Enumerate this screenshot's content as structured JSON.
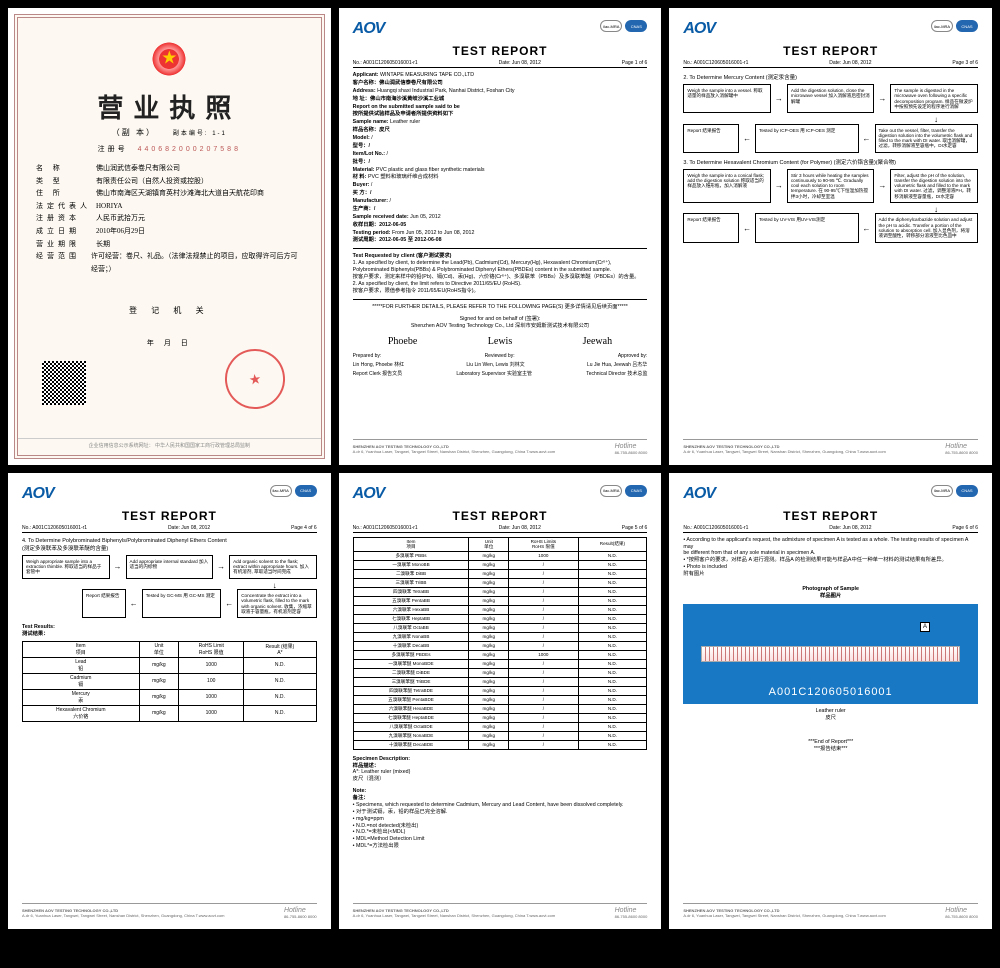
{
  "brand": "AOV",
  "cert_badges": [
    "ilac-MRA",
    "CNAS"
  ],
  "report_title": "TEST REPORT",
  "ref_no": "No.: A001C120605016001-r1",
  "date": "Date: Jun 08, 2012",
  "footer_company": "SHENZHEN AOV TESTING TECHNOLOGY CO.,LTD",
  "footer_addr": "A.dr 6, Yuanhua Laser, Tangwei, Tangwei Street, Nanshan District, Shenzhen, Guangdong, China    T.www.aovt.com",
  "hotline_label": "Hotline",
  "hotline_num": "86-755-8600 8000",
  "license": {
    "title": "营业执照",
    "sub": "（副 本）",
    "reg_label": "注册号",
    "reg_no": "440682000207588",
    "fields": [
      {
        "lbl": "名    称",
        "val": "佛山润武信泰卷尺有限公司"
      },
      {
        "lbl": "类    型",
        "val": "有限责任公司（自然人投资或控股）"
      },
      {
        "lbl": "住    所",
        "val": "佛山市南海区天湖镇育英村沙滩海北大道自天航花印商"
      },
      {
        "lbl": "法定代表人",
        "val": "HORIYA"
      },
      {
        "lbl": "注册资本",
        "val": "人民币武拾万元"
      },
      {
        "lbl": "成立日期",
        "val": "2010年06月29日"
      },
      {
        "lbl": "营业期限",
        "val": "长期"
      },
      {
        "lbl": "经营范围",
        "val": "许可经营：卷尺、礼品。（法律法规禁止的项目，应取得许可后方可经营；）"
      }
    ],
    "authority": "登 记 机 关",
    "date_line": "年    月    日",
    "foot": "企业信用信息公示系统网址：               中华人民共和国国家工商行政管理总局监制"
  },
  "p1": {
    "page": "Page 1 of 6",
    "lines": [
      "Applicant: WINTAPE MEASURING TAPE CO.,LTD",
      "客户名称：佛山润武信泰卷尺有限公司",
      "Address: Huangqi shaxi Industrial Park, Nanhai District, Foshan City",
      "地    址：佛山市南海沙溪黄岐沙溪工业城",
      "Report on the submitted sample said to be",
      "按所提供试验样品及申请者所提供资料如下",
      "Sample name: Leather ruler",
      "样品名称：皮尺",
      "Model: /",
      "型号：/",
      "Item/Lot No.: /",
      "批号：/",
      "Material: PVC plastic and glass fiber synthetic materials",
      "材  料: PVC 塑料和玻璃纤维合成材料",
      "Buyer: /",
      "买  方：/",
      "Manufacturer: /",
      "生产商：/",
      "Sample received date: Jun 05, 2012",
      "收样日期：2012-06-05",
      "Testing period: From Jun 05, 2012 to Jun 08, 2012",
      "测试周期：2012-06-05 至 2012-06-08"
    ],
    "req_title": "Test Requested by client (客户测试要求)",
    "req": [
      "1. As specified by client, to determine the Lead(Pb), Cadmium(Cd), Mercury(Hg), Hexavalent Chromium(Cr⁶⁺),",
      "   Polybrominated Biphenyls(PBBs) & Polybrominated Diphenyl Ethers(PBDEs) content in the submitted sample.",
      "   按客户要求，测定来样中的铅(Pb)、镉(Cd)、汞(Hg)、六价铬(Cr⁶⁺)、多溴联苯（PBBs）及多溴联苯醚（PBDEs）的含量。",
      "2. As specified by client, the limit refers to Directive 2011/65/EU (RoHS).",
      "   按客户要求，限值参考指令 2011/65/EU(RoHS指令)。"
    ],
    "further": "*****FOR FURTHER DETAILS, PLEASE REFER TO THE FOLLOWING PAGE(S) 更多详情请见后续页面*****",
    "signed": "Signed for and on behalf of (签署):",
    "company_cn": "Shenzhen AOV Testing Technology Co., Ltd 深圳市安姆斯测试技术有限公司",
    "sig1": "Phoebe",
    "sig2": "Lewis",
    "sig3": "Jeewah",
    "r1a": "Prepared by:",
    "r1b": "Reviewed by:",
    "r1c": "Approved by:",
    "r2a": "Lin Hong, Phoebe 林红",
    "r2b": "Liu Lin Wen, Lewis 刘林文",
    "r2c": "Lu Jie Hua, Jeewah 吕杰华",
    "r3a": "Report Clerk   报告文员",
    "r3b": "Laboratory Supervisor   实验室主管",
    "r3c": "Technical Director   技术总监"
  },
  "p3": {
    "page": "Page 3 of 6",
    "sec1": "2. To Determine Mercury Content (测定汞含量)",
    "b1": "Weigh the sample into a vessel.\n称取适量的样品放入消解罐中",
    "b2": "Add the digestion solution, close the microwave vessel\n加入消解液后密封消解罐",
    "b3": "The sample is digested in the microwave oven following a specific decomposition program.\n样品在微波炉中按照预先设定的程序进行消解",
    "b4": "Report\n结果报告",
    "b5": "Tested by ICP-OES\n用 ICP-OES 测定",
    "b6": "Take out the vessel, filter, transfer the digestion solution into the volumetric flask and filled to the mark with DI water.\n取出消解罐，过滤，转移消解液至容瓶中，DI水定容",
    "sec2": "3. To Determine Hexavalent Chromium Content (for Polymer) (测定六价铬含量)(聚合物)",
    "c1": "Weigh the sample into a conical flask; add the digestion solution\n称取适当的样品放入锥形瓶，加入消解液",
    "c2": "Stir 3 hours while heating the samples continuously to 90-95 ℃. Gradually cool each solution to room temperature.\n在 90-95℃下恒温加热搅拌3小时，冷却至室温",
    "c3": "Filter, adjust the pH of the solution, transfer the digestion solution into the volumetric flask and filled to the mark with DI water.\n过滤，调整溶液PH，转移消解液至容量瓶，DI水定容",
    "c4": "Report\n结果报告",
    "c5": "Tested by UV-VIS\n用UV-VIS测定",
    "c6": "Add the diphenylcarbazide solution and adjust the pH to acidic. Transfer a portion of the solution to absorption cell.\n加入显色剂，将溶液调至酸性，转移部分溶液至比色皿中"
  },
  "p4": {
    "page": "Page 4 of 6",
    "sec": "4. To Determine Polybrominated Biphenyls/Polybrominated Diphenyl Ethers Content\n(测定多溴联苯及多溴联苯醚的含量)",
    "d1": "Weigh appropriate sample into a extraction thimble.\n称取适当的样品于套管中",
    "d2": "Add appropriate internal standard\n加入适当的内标物",
    "d3": "Add organic solvent to the flask; extract within appropriate hours.\n加入有机溶剂, 萃取适当时间完成",
    "d4": "Report\n结果报告",
    "d5": "Tested by GC-MS\n用 GC-MS 测定",
    "d6": "Concentrate the extract into a volumetric flask, filled to the mark with organic solvent.\n收集，浓缩萃取液于容量瓶，有机溶剂定容",
    "res_title": "Test Results:\n测试结果：",
    "cols": [
      "Item\n项目",
      "Unit\n单位",
      "RoHS Limit\nRoHS 限值",
      "Result (结果)\nA*"
    ],
    "rows": [
      [
        "Lead\n铅",
        "mg/kg",
        "1000",
        "N.D."
      ],
      [
        "Cadmium\n镉",
        "mg/kg",
        "100",
        "N.D."
      ],
      [
        "Mercury\n汞",
        "mg/kg",
        "1000",
        "N.D."
      ],
      [
        "Hexavalent Chromium\n六价铬",
        "mg/kg",
        "1000",
        "N.D."
      ]
    ]
  },
  "p5": {
    "page": "Page 5 of 6",
    "cols": [
      "Item\n项目",
      "Unit\n单位",
      "RoHS Limits\nRoHS 限值",
      "Result(结果)"
    ],
    "rows": [
      [
        "多溴联苯  PBBs",
        "mg/kg",
        "1000",
        "N.D."
      ],
      [
        "一溴联苯  MonoBB",
        "mg/kg",
        "/",
        "N.D."
      ],
      [
        "二溴联苯  DiBB",
        "mg/kg",
        "/",
        "N.D."
      ],
      [
        "三溴联苯  TriBB",
        "mg/kg",
        "/",
        "N.D."
      ],
      [
        "四溴联苯  TetraBB",
        "mg/kg",
        "/",
        "N.D."
      ],
      [
        "五溴联苯  PentaBB",
        "mg/kg",
        "/",
        "N.D."
      ],
      [
        "六溴联苯  HexaBB",
        "mg/kg",
        "/",
        "N.D."
      ],
      [
        "七溴联苯  HeptaBB",
        "mg/kg",
        "/",
        "N.D."
      ],
      [
        "八溴联苯  OctaBB",
        "mg/kg",
        "/",
        "N.D."
      ],
      [
        "九溴联苯  NonaBB",
        "mg/kg",
        "/",
        "N.D."
      ],
      [
        "十溴联苯  DecaBB",
        "mg/kg",
        "/",
        "N.D."
      ],
      [
        "多溴联苯醚  PBDEs",
        "mg/kg",
        "1000",
        "N.D."
      ],
      [
        "一溴联苯醚  MonoBDE",
        "mg/kg",
        "/",
        "N.D."
      ],
      [
        "二溴联苯醚  DiBDE",
        "mg/kg",
        "/",
        "N.D."
      ],
      [
        "三溴联苯醚  TriBDE",
        "mg/kg",
        "/",
        "N.D."
      ],
      [
        "四溴联苯醚  TetraBDE",
        "mg/kg",
        "/",
        "N.D."
      ],
      [
        "五溴联苯醚  PentaBDE",
        "mg/kg",
        "/",
        "N.D."
      ],
      [
        "六溴联苯醚  HexaBDE",
        "mg/kg",
        "/",
        "N.D."
      ],
      [
        "七溴联苯醚  HeptaBDE",
        "mg/kg",
        "/",
        "N.D."
      ],
      [
        "八溴联苯醚  OctaBDE",
        "mg/kg",
        "/",
        "N.D."
      ],
      [
        "九溴联苯醚  NonaBDE",
        "mg/kg",
        "/",
        "N.D."
      ],
      [
        "十溴联苯醚  DecaBDE",
        "mg/kg",
        "/",
        "N.D."
      ]
    ],
    "spec_title": "Specimen Description:\n样品描述：",
    "spec": "A*: Leather ruler (mixed)\n     皮尺（混测）",
    "note_title": "Note:\n备注：",
    "notes": [
      "• Specimens, which requested to determine Cadmium, Mercury and Lead Content, have been dissolved completely.",
      "• 对于测试镉，汞，铅的样品已完全溶解.",
      "• mg/kg=ppm",
      "• N.D.=not detected(未检出)",
      "• N.D.*=未检出(<MDL)",
      "• MDL=Method Detection Limit",
      "• MDL*=方法检出限"
    ]
  },
  "p6": {
    "page": "Page 6 of 6",
    "l1": "• According to the applicant's request, the admixture of specimen A is tested as a whole. The testing results of specimen A may",
    "l1b": "  be different from that of any sole material in specimen A.",
    "l2": "• *按照客户的要求，对样品 A 进行混测。样品A 的检测结果可能与样品A中任一种单一材料的测试结果有所差异。",
    "l3": "• Photo is included",
    "l4": "  附有图片",
    "photo_title": "Photograph of Sample\n样品图片",
    "photo_tag": "A",
    "photo_id": "A001C120605016001",
    "photo_caption": "Leather ruler\n皮尺",
    "end": "***End of Report***\n***报告结束***"
  }
}
